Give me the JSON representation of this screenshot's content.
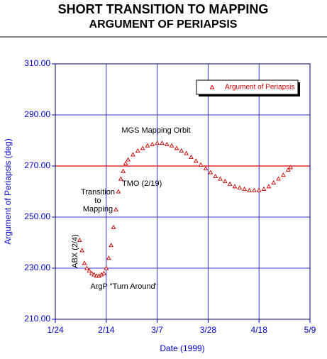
{
  "chart_data": {
    "type": "scatter",
    "title": "SHORT TRANSITION TO MAPPING",
    "subtitle": "ARGUMENT OF PERIAPSIS",
    "x_label": "Date (1999)",
    "y_label": "Argument of Periapsis (deg)",
    "xlim": [
      24,
      129
    ],
    "xticks": [
      {
        "value": 24,
        "label": "1/24"
      },
      {
        "value": 45,
        "label": "2/14"
      },
      {
        "value": 66,
        "label": "3/7"
      },
      {
        "value": 87,
        "label": "3/28"
      },
      {
        "value": 108,
        "label": "4/18"
      },
      {
        "value": 129,
        "label": "5/9"
      }
    ],
    "ylim": [
      210,
      310
    ],
    "yticks": [
      {
        "value": 210,
        "label": "210.00"
      },
      {
        "value": 230,
        "label": "230.00"
      },
      {
        "value": 250,
        "label": "250.00"
      },
      {
        "value": 270,
        "label": "270.00"
      },
      {
        "value": 290,
        "label": "290.00"
      },
      {
        "value": 310,
        "label": "310.00"
      }
    ],
    "grid": true,
    "legend_position": "upper right",
    "reference_line": {
      "value": 270,
      "color": "#dd0000"
    },
    "annotations": [
      "MGS Mapping Orbit",
      "TMO (2/19)",
      "Transition",
      "to",
      "Mapping",
      "ABX (2/4)",
      "ArgP \"Turn Around\""
    ],
    "series": [
      {
        "name": "Argument of Periapsis",
        "color": "#cc0000",
        "x": [
          34,
          35,
          36,
          37,
          38,
          39,
          40,
          41,
          42,
          43,
          44,
          45,
          46,
          47,
          48,
          49,
          50,
          51,
          52,
          53,
          54,
          56,
          58,
          60,
          62,
          64,
          66,
          68,
          70,
          72,
          74,
          76,
          78,
          80,
          82,
          84,
          86,
          88,
          90,
          92,
          94,
          96,
          98,
          100,
          102,
          104,
          106,
          108,
          110,
          112,
          114,
          116,
          118,
          120,
          121
        ],
        "values": [
          241,
          237,
          232,
          230,
          229,
          228,
          227.5,
          227,
          227,
          227.5,
          228,
          230,
          234,
          239,
          246,
          253,
          260,
          265,
          268,
          271,
          272.5,
          274.5,
          276,
          277,
          278,
          278.5,
          279,
          279,
          278.5,
          278,
          277,
          276,
          275,
          273.5,
          272,
          270.5,
          269,
          267.5,
          266,
          265,
          264,
          263,
          262,
          261.5,
          261,
          260.5,
          260.5,
          260.5,
          261,
          262,
          263.5,
          265,
          266.5,
          268.5,
          269.5
        ]
      }
    ]
  }
}
